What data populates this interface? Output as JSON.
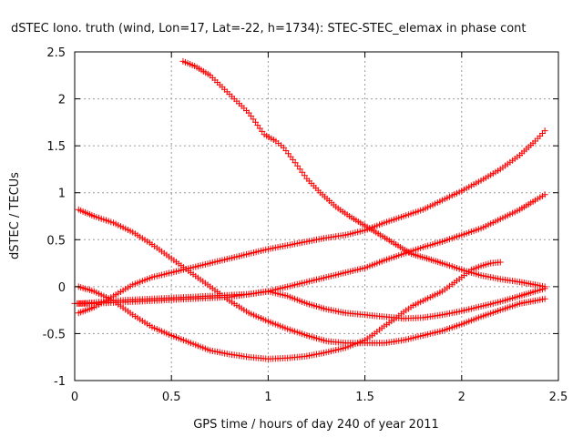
{
  "chart_data": {
    "type": "scatter",
    "title": "dSTEC Iono. truth (wind, Lon=17, Lat=-22, h=1734): STEC-STEC_elemax in phase cont",
    "xlabel": "GPS time / hours of day 240 of year 2011",
    "ylabel": "dSTEC  / TECUs",
    "xlim": [
      0,
      2.5
    ],
    "ylim": [
      -1,
      2.5
    ],
    "xticks": [
      "0",
      "0.5",
      "1",
      "1.5",
      "2",
      "2.5"
    ],
    "yticks": [
      "-1",
      "-0.5",
      "0",
      "0.5",
      "1",
      "1.5",
      "2",
      "2.5"
    ],
    "grid": true,
    "marker": "plus",
    "color": "#ff0000",
    "series": [
      {
        "x": [
          0.56,
          0.62,
          0.7,
          0.8,
          0.9,
          0.98,
          1.04,
          1.08,
          1.14,
          1.2,
          1.27,
          1.35,
          1.42,
          1.5,
          1.58,
          1.66,
          1.74,
          1.82,
          1.9,
          2.0,
          2.1,
          2.2,
          2.3,
          2.38,
          2.43
        ],
        "y": [
          2.4,
          2.35,
          2.25,
          2.05,
          1.85,
          1.62,
          1.55,
          1.48,
          1.32,
          1.15,
          1.0,
          0.85,
          0.75,
          0.65,
          0.55,
          0.45,
          0.35,
          0.3,
          0.25,
          0.18,
          0.12,
          0.08,
          0.05,
          0.02,
          0.0
        ]
      },
      {
        "x": [
          0.02,
          0.1,
          0.2,
          0.3,
          0.4,
          0.5,
          0.6,
          0.7,
          0.8,
          0.9,
          1.0,
          1.1,
          1.2,
          1.3,
          1.4,
          1.5,
          1.6,
          1.7,
          1.8,
          1.9,
          2.0,
          2.1,
          2.2,
          2.3,
          2.38,
          2.43
        ],
        "y": [
          0.82,
          0.75,
          0.68,
          0.58,
          0.45,
          0.3,
          0.15,
          0.0,
          -0.15,
          -0.28,
          -0.37,
          -0.45,
          -0.52,
          -0.58,
          -0.6,
          -0.6,
          -0.6,
          -0.57,
          -0.52,
          -0.47,
          -0.4,
          -0.32,
          -0.25,
          -0.18,
          -0.15,
          -0.13
        ]
      },
      {
        "x": [
          0.02,
          0.1,
          0.2,
          0.3,
          0.4,
          0.5,
          0.6,
          0.7,
          0.8,
          0.9,
          1.0,
          1.1,
          1.2,
          1.3,
          1.4,
          1.5,
          1.55,
          1.6,
          1.65,
          1.7,
          1.75,
          1.8,
          1.9,
          2.0,
          2.05,
          2.1,
          2.15,
          2.2
        ],
        "y": [
          0.0,
          -0.05,
          -0.15,
          -0.3,
          -0.43,
          -0.52,
          -0.6,
          -0.68,
          -0.72,
          -0.75,
          -0.77,
          -0.76,
          -0.74,
          -0.7,
          -0.65,
          -0.57,
          -0.5,
          -0.42,
          -0.35,
          -0.27,
          -0.2,
          -0.15,
          -0.05,
          0.1,
          0.18,
          0.22,
          0.25,
          0.26
        ]
      },
      {
        "x": [
          0.02,
          0.1,
          0.2,
          0.3,
          0.4,
          0.5,
          0.6,
          0.7,
          0.8,
          0.9,
          1.0,
          1.1,
          1.2,
          1.3,
          1.4,
          1.5,
          1.6,
          1.7,
          1.8,
          1.9,
          2.0,
          2.1,
          2.2,
          2.3,
          2.38,
          2.43
        ],
        "y": [
          -0.28,
          -0.22,
          -0.1,
          0.02,
          0.1,
          0.15,
          0.2,
          0.25,
          0.3,
          0.35,
          0.4,
          0.44,
          0.48,
          0.52,
          0.55,
          0.6,
          0.68,
          0.75,
          0.82,
          0.92,
          1.02,
          1.13,
          1.25,
          1.4,
          1.55,
          1.66
        ]
      },
      {
        "x": [
          0.02,
          0.1,
          0.2,
          0.3,
          0.4,
          0.5,
          0.6,
          0.7,
          0.8,
          0.9,
          1.0,
          1.1,
          1.2,
          1.3,
          1.4,
          1.5,
          1.6,
          1.7,
          1.8,
          1.9,
          2.0,
          2.1,
          2.2,
          2.3,
          2.38,
          2.43
        ],
        "y": [
          -0.18,
          -0.17,
          -0.15,
          -0.14,
          -0.13,
          -0.12,
          -0.11,
          -0.1,
          -0.09,
          -0.08,
          -0.05,
          0.0,
          0.05,
          0.1,
          0.15,
          0.2,
          0.28,
          0.35,
          0.42,
          0.48,
          0.55,
          0.62,
          0.72,
          0.82,
          0.92,
          0.98
        ]
      },
      {
        "x": [
          0.0,
          0.1,
          0.2,
          0.3,
          0.4,
          0.5,
          0.6,
          0.7,
          0.8,
          0.9,
          1.0,
          1.1,
          1.2,
          1.3,
          1.4,
          1.5,
          1.6,
          1.7,
          1.8,
          1.9,
          2.0,
          2.1,
          2.2,
          2.3,
          2.38,
          2.43
        ],
        "y": [
          -0.18,
          -0.18,
          -0.17,
          -0.16,
          -0.15,
          -0.14,
          -0.13,
          -0.12,
          -0.11,
          -0.08,
          -0.05,
          -0.1,
          -0.18,
          -0.24,
          -0.28,
          -0.3,
          -0.32,
          -0.34,
          -0.33,
          -0.3,
          -0.26,
          -0.21,
          -0.16,
          -0.1,
          -0.05,
          -0.02
        ]
      }
    ]
  }
}
